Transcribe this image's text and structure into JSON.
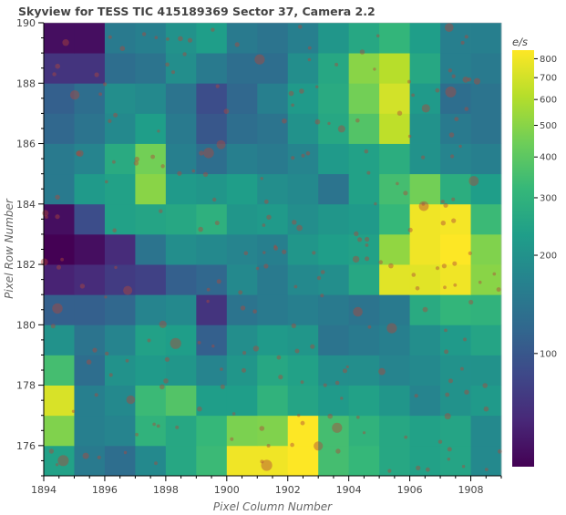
{
  "title": "Skyview for TESS TIC 415189369 Sector 37, Camera 2.2",
  "chart_data": {
    "type": "heatmap",
    "title": "Skyview for TESS TIC 415189369 Sector 37, Camera 2.2",
    "xlabel": "Pixel Column Number",
    "ylabel": "Pixel Row Number",
    "xlim": [
      1894,
      1909
    ],
    "ylim": [
      175,
      190
    ],
    "x_ticks": [
      1894,
      1896,
      1898,
      1900,
      1902,
      1904,
      1906,
      1908
    ],
    "y_ticks": [
      176,
      178,
      180,
      182,
      184,
      186,
      188,
      190
    ],
    "colorbar": {
      "label": "e/s",
      "scale": "log",
      "range": [
        45,
        850
      ],
      "ticks": [
        100,
        200,
        300,
        400,
        500,
        600,
        700,
        800
      ],
      "colormap": [
        "#440154",
        "#482878",
        "#3e4989",
        "#31688e",
        "#26828e",
        "#1f9e89",
        "#35b779",
        "#6ece58",
        "#b5de2b",
        "#fde725"
      ]
    },
    "pixel_rows": [
      175,
      176,
      177,
      178,
      179,
      180,
      181,
      182,
      183,
      184,
      185,
      186,
      187,
      188,
      189
    ],
    "pixel_columns": [
      1894,
      1895,
      1896,
      1897,
      1898,
      1899,
      1900,
      1901,
      1902,
      1903,
      1904,
      1905,
      1906,
      1907,
      1908
    ],
    "values": [
      [
        240,
        150,
        130,
        180,
        260,
        330,
        800,
        800,
        850,
        350,
        320,
        260,
        240,
        250,
        180
      ],
      [
        480,
        160,
        170,
        300,
        260,
        320,
        470,
        480,
        850,
        350,
        300,
        260,
        240,
        250,
        180
      ],
      [
        720,
        160,
        180,
        330,
        380,
        230,
        230,
        300,
        250,
        220,
        240,
        210,
        170,
        200,
        220
      ],
      [
        350,
        130,
        200,
        220,
        210,
        170,
        210,
        260,
        240,
        190,
        190,
        170,
        180,
        200,
        200
      ],
      [
        200,
        140,
        170,
        240,
        230,
        110,
        190,
        220,
        210,
        140,
        150,
        160,
        190,
        220,
        250
      ],
      [
        110,
        110,
        120,
        170,
        180,
        70,
        140,
        150,
        160,
        150,
        140,
        150,
        270,
        310,
        300
      ],
      [
        60,
        65,
        75,
        80,
        110,
        120,
        180,
        150,
        180,
        190,
        260,
        750,
        750,
        800,
        500
      ],
      [
        45,
        50,
        65,
        140,
        190,
        180,
        170,
        160,
        210,
        230,
        240,
        520,
        800,
        850,
        480
      ],
      [
        50,
        90,
        240,
        250,
        260,
        290,
        210,
        220,
        190,
        210,
        220,
        320,
        800,
        820,
        330
      ],
      [
        150,
        220,
        240,
        500,
        220,
        210,
        230,
        190,
        180,
        140,
        240,
        350,
        450,
        280,
        230
      ],
      [
        150,
        170,
        270,
        450,
        160,
        130,
        160,
        150,
        170,
        220,
        240,
        280,
        200,
        170,
        160
      ],
      [
        120,
        140,
        180,
        230,
        150,
        100,
        130,
        140,
        200,
        260,
        380,
        640,
        200,
        150,
        140
      ],
      [
        110,
        130,
        190,
        180,
        140,
        90,
        120,
        160,
        220,
        270,
        450,
        700,
        220,
        130,
        140
      ],
      [
        70,
        70,
        130,
        140,
        190,
        150,
        130,
        130,
        190,
        260,
        500,
        620,
        260,
        160,
        150
      ],
      [
        50,
        50,
        150,
        160,
        200,
        230,
        150,
        140,
        160,
        210,
        260,
        310,
        230,
        160,
        160
      ]
    ]
  }
}
